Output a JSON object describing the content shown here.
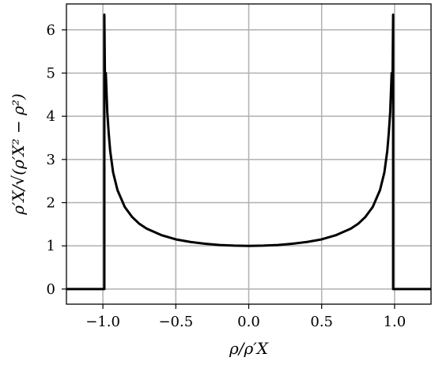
{
  "chart_data": {
    "type": "line",
    "title": "",
    "xlabel": "ρ/ρ′X",
    "ylabel": "ρ′X/√(ρ′X² − ρ²)",
    "xlim": [
      -1.25,
      1.25
    ],
    "ylim": [
      -0.35,
      6.6
    ],
    "grid": true,
    "legend": "none",
    "x_ticks": [
      -1.0,
      -0.5,
      0.0,
      0.5,
      1.0
    ],
    "x_tick_labels": [
      "−1.0",
      "−0.5",
      "0.0",
      "0.5",
      "1.0"
    ],
    "y_ticks": [
      0,
      1,
      2,
      3,
      4,
      5,
      6
    ],
    "y_tick_labels": [
      "0",
      "1",
      "2",
      "3",
      "4",
      "5",
      "6"
    ],
    "series": [
      {
        "color": "#000000",
        "x": [
          -1.25,
          -0.99,
          -0.99,
          -0.985,
          -0.98,
          -0.97,
          -0.96,
          -0.95,
          -0.93,
          -0.9,
          -0.85,
          -0.8,
          -0.75,
          -0.7,
          -0.6,
          -0.5,
          -0.4,
          -0.3,
          -0.2,
          -0.1,
          0.0,
          0.1,
          0.2,
          0.3,
          0.4,
          0.5,
          0.6,
          0.7,
          0.75,
          0.8,
          0.85,
          0.9,
          0.93,
          0.95,
          0.96,
          0.97,
          0.98,
          0.985,
          0.99,
          0.99,
          1.25
        ],
        "y": [
          0,
          0,
          6.35,
          4.5,
          5.0,
          4.1,
          3.6,
          3.2,
          2.7,
          2.29,
          1.9,
          1.67,
          1.51,
          1.4,
          1.25,
          1.15,
          1.09,
          1.05,
          1.02,
          1.005,
          1.0,
          1.005,
          1.02,
          1.05,
          1.09,
          1.15,
          1.25,
          1.4,
          1.51,
          1.67,
          1.9,
          2.29,
          2.7,
          3.2,
          3.6,
          4.1,
          5.0,
          4.5,
          6.35,
          0,
          0
        ]
      }
    ]
  }
}
